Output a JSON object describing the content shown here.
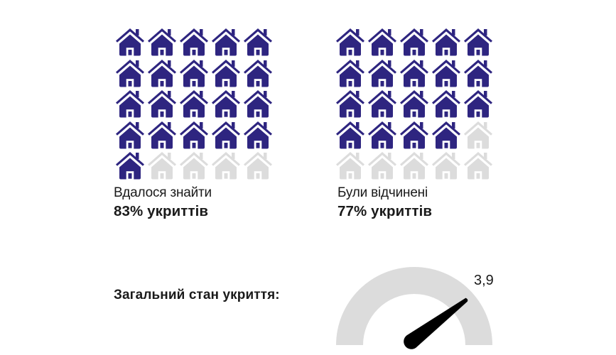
{
  "colors": {
    "filled": "#2e2580",
    "empty": "#dcdcdc",
    "gauge_track": "#dcdcdc",
    "needle": "#000000",
    "text": "#1a1a1a"
  },
  "icon": "house-icon",
  "panels": [
    {
      "label": "Вдалося знайти",
      "value": "83% укриттів",
      "total_icons": 25,
      "filled_icons": 21
    },
    {
      "label": "Були відчинені",
      "value": "77% укриттів",
      "total_icons": 25,
      "filled_icons": 19
    }
  ],
  "gauge": {
    "label": "Загальний стан укриття:",
    "value": "3,9"
  },
  "chart_data": [
    {
      "type": "pictogram",
      "title": "Вдалося знайти",
      "subtitle": "83% укриттів",
      "unit_icon": "house",
      "grid": [
        5,
        5
      ],
      "total": 25,
      "filled": 21,
      "percent": 83
    },
    {
      "type": "pictogram",
      "title": "Були відчинені",
      "subtitle": "77% укриттів",
      "unit_icon": "house",
      "grid": [
        5,
        5
      ],
      "total": 25,
      "filled": 19,
      "percent": 77
    },
    {
      "type": "gauge",
      "title": "Загальний стан укриття:",
      "value": 3.9,
      "value_label": "3,9",
      "range": [
        0,
        5
      ]
    }
  ]
}
